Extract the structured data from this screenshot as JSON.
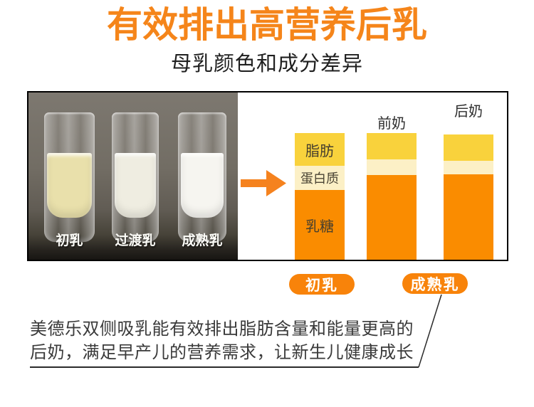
{
  "header": {
    "title": "有效排出高营养后乳",
    "subtitle": "母乳颜色和成分差异"
  },
  "photo": {
    "description_labels": [
      "初乳",
      "过渡乳",
      "成熟乳"
    ],
    "tubes": [
      {
        "label": "初乳",
        "milk_color": "#e9e0ab"
      },
      {
        "label": "过渡乳",
        "milk_color": "#efede1"
      },
      {
        "label": "成熟乳",
        "milk_color": "#f6f5f0"
      }
    ]
  },
  "chart_data": {
    "type": "bar",
    "subtype": "stacked",
    "title": "母乳颜色和成分差异",
    "categories": [
      "初乳",
      "前奶",
      "后奶"
    ],
    "segments": [
      {
        "key": "fat",
        "label": "脂肪",
        "color": "#f9d23c"
      },
      {
        "key": "protein",
        "label": "蛋白质",
        "color": "#fcf0c6"
      },
      {
        "key": "lactose",
        "label": "乳糖",
        "color": "#fa8c00"
      }
    ],
    "bars": [
      {
        "name": "初乳",
        "show_segment_labels": true,
        "heights_pct": [
          26,
          19,
          55
        ]
      },
      {
        "name": "前奶",
        "show_segment_labels": false,
        "heights_pct": [
          21,
          12,
          67
        ]
      },
      {
        "name": "后奶",
        "show_segment_labels": false,
        "heights_pct": [
          21,
          11,
          68
        ]
      }
    ],
    "ylabel": "",
    "xlabel": "",
    "axis_shown": false,
    "legend_position": "inside-first-bar"
  },
  "callouts": {
    "colostrum": "初乳",
    "mature_milk": "成熟乳"
  },
  "footer": {
    "line1": "美德乐双侧吸乳能有效排出脂肪含量和能量更高的",
    "line2": "后奶，满足早产儿的营养需求，让新生儿健康成长"
  },
  "colors": {
    "title_orange": "#f5851a",
    "arrow_orange": "#f5821e",
    "pill_orange": "#f8830a",
    "bar_fat_yellow": "#f9d23c",
    "bar_protein_cream": "#fcf0c6",
    "bar_lactose_orange": "#fa8c00",
    "footer_text": "#3a3a3a",
    "panel_border": "#000000"
  }
}
